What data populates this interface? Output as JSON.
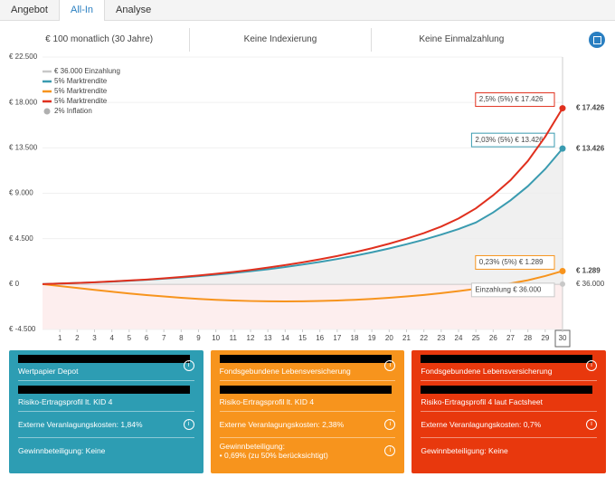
{
  "tabs": [
    "Angebot",
    "All-In",
    "Analyse"
  ],
  "active_tab": "All-In",
  "options": [
    "€ 100 monatlich (30 Jahre)",
    "Keine Indexierung",
    "Keine Einmalzahlung"
  ],
  "chart_data": {
    "type": "line",
    "x": [
      0,
      1,
      2,
      3,
      4,
      5,
      6,
      7,
      8,
      9,
      10,
      11,
      12,
      13,
      14,
      15,
      16,
      17,
      18,
      19,
      20,
      21,
      22,
      23,
      24,
      25,
      26,
      27,
      28,
      29,
      30
    ],
    "xlim": [
      0,
      30
    ],
    "xticks": [
      1,
      2,
      3,
      4,
      5,
      6,
      7,
      8,
      9,
      10,
      11,
      12,
      13,
      14,
      15,
      16,
      17,
      18,
      19,
      20,
      21,
      22,
      23,
      24,
      25,
      26,
      27,
      28,
      29,
      30
    ],
    "selected_x": 30,
    "ylim": [
      -4500,
      22500
    ],
    "yticks": [
      {
        "value": -4500,
        "label": "€ -4.500"
      },
      {
        "value": 0,
        "label": "€ 0"
      },
      {
        "value": 4500,
        "label": "€ 4.500"
      },
      {
        "value": 9000,
        "label": "€ 9.000"
      },
      {
        "value": 13500,
        "label": "€ 13.500"
      },
      {
        "value": 18000,
        "label": "€ 18.000"
      },
      {
        "value": 22500,
        "label": "€ 22.500"
      }
    ],
    "grid": true,
    "deposit": {
      "legend": "€ 36.000 Einzahlung",
      "callout": "Einzahlung € 36.000",
      "end_label": "€ 36.000",
      "color": "#c8c8c8"
    },
    "inflation": {
      "legend": "2% Inflation",
      "color": "#b0b0b0"
    },
    "series": [
      {
        "name": "5% Marktrendite",
        "color": "#3a9bb0",
        "callout": "2,03% (5%) € 13.426",
        "end_label": "€ 13.426",
        "values": [
          0,
          50,
          105,
          170,
          245,
          330,
          420,
          530,
          650,
          780,
          930,
          1090,
          1270,
          1470,
          1690,
          1930,
          2190,
          2480,
          2800,
          3150,
          3530,
          3950,
          4400,
          4900,
          5450,
          6100,
          7100,
          8300,
          9700,
          11400,
          13426
        ]
      },
      {
        "name": "5% Marktrendite",
        "color": "#f7941d",
        "callout": "0,23% (5%) € 1.289",
        "end_label": "€ 1.289",
        "values": [
          0,
          -200,
          -390,
          -580,
          -760,
          -930,
          -1090,
          -1230,
          -1360,
          -1470,
          -1560,
          -1630,
          -1680,
          -1710,
          -1720,
          -1710,
          -1680,
          -1630,
          -1560,
          -1470,
          -1360,
          -1230,
          -1080,
          -900,
          -700,
          -470,
          -220,
          60,
          380,
          800,
          1289
        ]
      },
      {
        "name": "5% Marktrendite",
        "color": "#e0301e",
        "callout": "2,5% (5%) € 17.426",
        "end_label": "€ 17.426",
        "values": [
          0,
          50,
          110,
          180,
          260,
          350,
          450,
          570,
          700,
          850,
          1020,
          1200,
          1400,
          1630,
          1880,
          2150,
          2450,
          2780,
          3150,
          3550,
          4000,
          4500,
          5050,
          5700,
          6500,
          7500,
          8800,
          10300,
          12200,
          14600,
          17426
        ]
      }
    ]
  },
  "cards": [
    {
      "color": "#2d9db3",
      "title": "Wertpapier Depot",
      "profile": "Risiko-Ertragsprofil lt. KID 4",
      "costs": "Externe Veranlagungskosten: 1,84%",
      "profit": "Gewinnbeteiligung: Keine"
    },
    {
      "color": "#f7941d",
      "title": "Fondsgebundene Lebensversicherung",
      "profile": "Risiko-Ertragsprofil lt. KID 4",
      "costs": "Externe Veranlagungskosten: 2,38%",
      "profit": "Gewinnbeteiligung:",
      "profit_detail": "0,69% (zu 50% berücksichtigt)"
    },
    {
      "color": "#e8380d",
      "title": "Fondsgebundene Lebensversicherung",
      "profile": "Risiko-Ertragsprofil 4 laut Factsheet",
      "costs": "Externe Veranlagungskosten: 0,7%",
      "profit": "Gewinnbeteiligung: Keine"
    }
  ]
}
